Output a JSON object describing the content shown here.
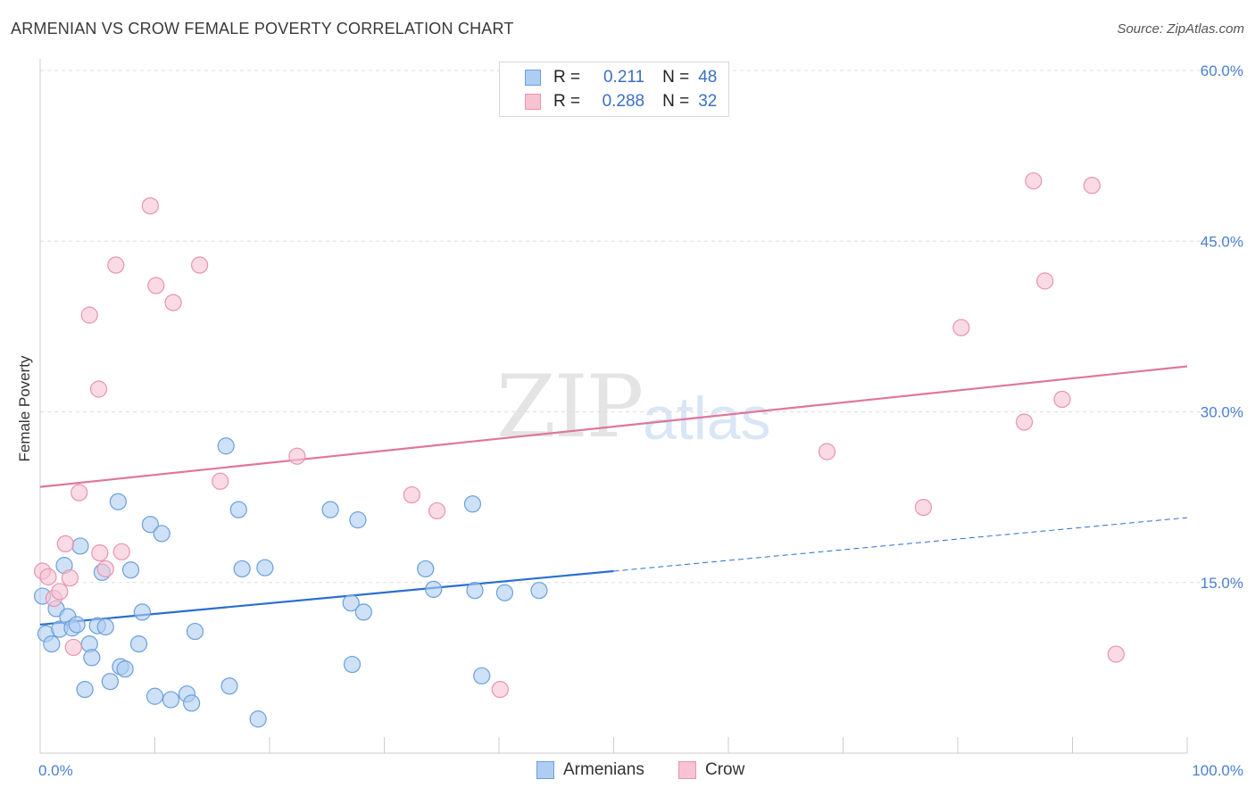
{
  "title": "ARMENIAN VS CROW FEMALE POVERTY CORRELATION CHART",
  "source": "Source: ZipAtlas.com",
  "watermark": {
    "zip": "ZIP",
    "atlas": "atlas"
  },
  "colors": {
    "armenians_fill": "#aecdf2",
    "armenians_stroke": "#6b9fdc",
    "armenians_line": "#2a6fd0",
    "crow_fill": "#f7c3d3",
    "crow_stroke": "#ea93ae",
    "crow_line": "#e0769a",
    "tick_text": "#4a7fd0"
  },
  "legend": {
    "armenians": {
      "r_label": "R =",
      "r_value": "0.211",
      "n_label": "N =",
      "n_value": "48"
    },
    "crow": {
      "r_label": "R =",
      "r_value": "0.288",
      "n_label": "N =",
      "n_value": "32"
    }
  },
  "chart_data": {
    "type": "scatter",
    "title": "ARMENIAN VS CROW FEMALE POVERTY CORRELATION CHART",
    "xlabel": "",
    "ylabel": "Female Poverty",
    "xlim": [
      0,
      100
    ],
    "ylim": [
      0,
      62
    ],
    "x_tick_labels": [
      "0.0%",
      "100.0%"
    ],
    "y_ticks": [
      15,
      30,
      45,
      60
    ],
    "y_tick_labels": [
      "15.0%",
      "30.0%",
      "45.0%",
      "60.0%"
    ],
    "grid": true,
    "legend_position": "top-center",
    "series": [
      {
        "name": "Armenians",
        "points": [
          [
            0.2,
            13.8
          ],
          [
            0.5,
            10.5
          ],
          [
            1.0,
            9.6
          ],
          [
            1.4,
            12.7
          ],
          [
            1.7,
            10.9
          ],
          [
            2.1,
            16.5
          ],
          [
            2.4,
            12.0
          ],
          [
            2.8,
            11.0
          ],
          [
            3.2,
            11.3
          ],
          [
            3.5,
            18.2
          ],
          [
            3.9,
            5.6
          ],
          [
            4.3,
            9.6
          ],
          [
            4.5,
            8.4
          ],
          [
            5.0,
            11.2
          ],
          [
            5.4,
            15.9
          ],
          [
            5.7,
            11.1
          ],
          [
            6.1,
            6.3
          ],
          [
            6.8,
            22.1
          ],
          [
            7.0,
            7.6
          ],
          [
            7.4,
            7.4
          ],
          [
            7.9,
            16.1
          ],
          [
            8.6,
            9.6
          ],
          [
            8.9,
            12.4
          ],
          [
            9.6,
            20.1
          ],
          [
            10.0,
            5.0
          ],
          [
            10.6,
            19.3
          ],
          [
            11.4,
            4.7
          ],
          [
            12.8,
            5.2
          ],
          [
            13.2,
            4.4
          ],
          [
            13.5,
            10.7
          ],
          [
            16.5,
            5.9
          ],
          [
            16.2,
            27.0
          ],
          [
            17.3,
            21.4
          ],
          [
            17.6,
            16.2
          ],
          [
            19.0,
            3.0
          ],
          [
            19.6,
            16.3
          ],
          [
            25.3,
            21.4
          ],
          [
            27.1,
            13.2
          ],
          [
            27.2,
            7.8
          ],
          [
            27.7,
            20.5
          ],
          [
            28.2,
            12.4
          ],
          [
            33.6,
            16.2
          ],
          [
            34.3,
            14.4
          ],
          [
            37.7,
            21.9
          ],
          [
            37.9,
            14.3
          ],
          [
            38.5,
            6.8
          ],
          [
            40.5,
            14.1
          ],
          [
            43.5,
            14.3
          ]
        ],
        "trend": {
          "x0": 0,
          "y0": 11.3,
          "x1": 50,
          "y1": 16.0,
          "dashed_to_x": 100,
          "dashed_to_y": 20.7
        }
      },
      {
        "name": "Crow",
        "points": [
          [
            0.2,
            16.0
          ],
          [
            0.7,
            15.5
          ],
          [
            1.2,
            13.6
          ],
          [
            1.7,
            14.2
          ],
          [
            2.2,
            18.4
          ],
          [
            2.6,
            15.4
          ],
          [
            2.9,
            9.3
          ],
          [
            3.4,
            22.9
          ],
          [
            4.3,
            38.5
          ],
          [
            5.1,
            32.0
          ],
          [
            5.2,
            17.6
          ],
          [
            5.7,
            16.2
          ],
          [
            6.6,
            42.9
          ],
          [
            7.1,
            17.7
          ],
          [
            9.6,
            48.1
          ],
          [
            10.1,
            41.1
          ],
          [
            11.6,
            39.6
          ],
          [
            13.9,
            42.9
          ],
          [
            15.7,
            23.9
          ],
          [
            22.4,
            26.1
          ],
          [
            32.4,
            22.7
          ],
          [
            34.6,
            21.3
          ],
          [
            40.1,
            5.6
          ],
          [
            68.6,
            26.5
          ],
          [
            77.0,
            21.6
          ],
          [
            80.3,
            37.4
          ],
          [
            85.8,
            29.1
          ],
          [
            86.6,
            50.3
          ],
          [
            87.6,
            41.5
          ],
          [
            89.1,
            31.1
          ],
          [
            91.7,
            49.9
          ],
          [
            93.8,
            8.7
          ]
        ],
        "trend": {
          "x0": 0,
          "y0": 23.4,
          "x1": 100,
          "y1": 34.0
        }
      }
    ]
  },
  "bottom_legend": {
    "armenians": "Armenians",
    "crow": "Crow"
  }
}
